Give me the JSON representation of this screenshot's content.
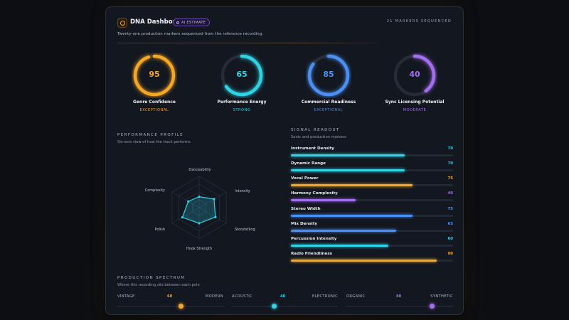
{
  "header": {
    "title": "DNA Dashboard",
    "badge": "AI ESTIMATE",
    "markers": "21 MARKERS SEQUENCED",
    "subtitle": "Twenty-one production markers sequenced from the reference recording."
  },
  "gauges": [
    {
      "label": "Genre Confidence",
      "value": 95,
      "rating": "EXCEPTIONAL",
      "color": "#f5a623"
    },
    {
      "label": "Performance Energy",
      "value": 65,
      "rating": "STRONG",
      "color": "#2ed3e6"
    },
    {
      "label": "Commercial Readiness",
      "value": 85,
      "rating": "EXCEPTIONAL",
      "color": "#4a8ff2"
    },
    {
      "label": "Sync Licensing Potential",
      "value": 40,
      "rating": "MODERATE",
      "color": "#a46ef0"
    }
  ],
  "performance": {
    "title": "PERFORMANCE PROFILE",
    "subtitle": "Six-axis view of how the track performs",
    "axes": [
      {
        "label": "Danceability",
        "value": 0.35
      },
      {
        "label": "Intensity",
        "value": 0.55
      },
      {
        "label": "Storytelling",
        "value": 0.6
      },
      {
        "label": "Hook Strength",
        "value": 0.5
      },
      {
        "label": "Polish",
        "value": 0.62
      },
      {
        "label": "Complexity",
        "value": 0.4
      }
    ],
    "color": "#2ed3e6"
  },
  "signal": {
    "title": "SIGNAL READOUT",
    "subtitle": "Sonic and production markers",
    "bars": [
      {
        "label": "Instrument Density",
        "value": 70,
        "color": "#2ed3e6"
      },
      {
        "label": "Dynamic Range",
        "value": 70,
        "color": "#2ed3e6"
      },
      {
        "label": "Vocal Power",
        "value": 75,
        "color": "#f5a623"
      },
      {
        "label": "Harmony Complexity",
        "value": 40,
        "color": "#a46ef0"
      },
      {
        "label": "Stereo Width",
        "value": 75,
        "color": "#4a8ff2"
      },
      {
        "label": "Mix Density",
        "value": 65,
        "color": "#4a8ff2"
      },
      {
        "label": "Percussion Intensity",
        "value": 60,
        "color": "#2ed3e6"
      },
      {
        "label": "Radio Friendliness",
        "value": 90,
        "color": "#f5a623"
      }
    ]
  },
  "spectrum": {
    "title": "PRODUCTION SPECTRUM",
    "subtitle": "Where this recording sits between each pole",
    "items": [
      {
        "left": "VINTAGE",
        "right": "MODERN",
        "value": 60,
        "color": "#f5a623"
      },
      {
        "left": "ACOUSTIC",
        "right": "ELECTRONIC",
        "value": 40,
        "color": "#2ed3e6"
      },
      {
        "left": "ORGANIC",
        "right": "SYNTHETIC",
        "value": 80,
        "color": "#a46ef0"
      }
    ]
  }
}
